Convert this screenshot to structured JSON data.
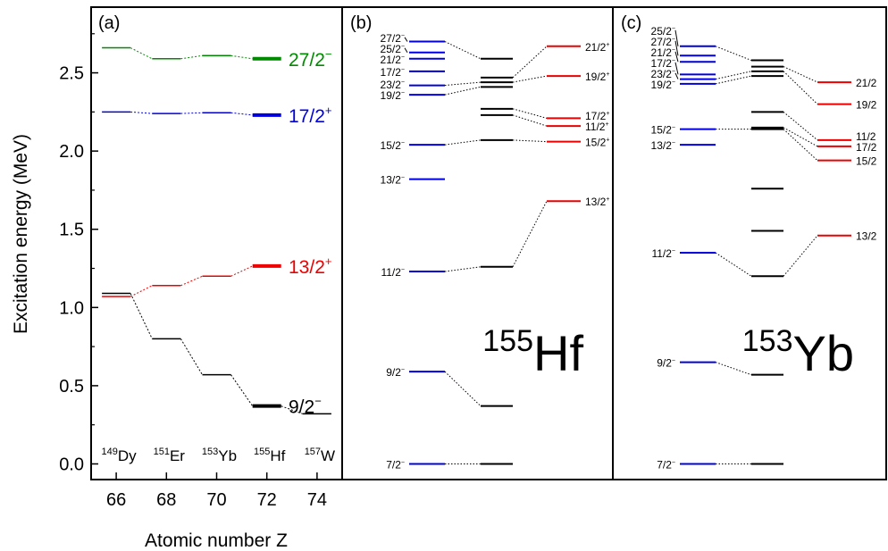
{
  "chart_data": {
    "type": "level-scheme",
    "ylabel": "Excitation energy (MeV)",
    "ylim": [
      -0.1,
      2.92
    ],
    "yticks": [
      "0.0",
      "0.5",
      "1.0",
      "1.5",
      "2.0",
      "2.5"
    ],
    "colors": {
      "green": "#008a00",
      "blue": "#0000e0",
      "red": "#ee0000",
      "black": "#000000"
    },
    "panels": [
      {
        "id": "a",
        "label": "(a)",
        "xlabel": "Atomic number Z",
        "xlim": [
          65,
          75
        ],
        "xticks": [
          "66",
          "68",
          "70",
          "72",
          "74"
        ],
        "nuclei": [
          {
            "mass": "149",
            "symbol": "Dy",
            "z": 66
          },
          {
            "mass": "151",
            "symbol": "Er",
            "z": 68
          },
          {
            "mass": "153",
            "symbol": "Yb",
            "z": 70
          },
          {
            "mass": "155",
            "symbol": "Hf",
            "z": 72
          },
          {
            "mass": "157",
            "symbol": "W",
            "z": 74
          }
        ],
        "series": [
          {
            "label": "27/2",
            "parity": "−",
            "color": "green",
            "z": [
              66,
              68,
              70,
              72
            ],
            "energy": [
              2.66,
              2.59,
              2.61,
              2.59
            ]
          },
          {
            "label": "17/2",
            "parity": "+",
            "color": "blue",
            "z": [
              66,
              68,
              70,
              72
            ],
            "energy": [
              2.25,
              2.24,
              2.245,
              2.23
            ]
          },
          {
            "label": "13/2",
            "parity": "+",
            "color": "red",
            "z": [
              66,
              68,
              70,
              72
            ],
            "energy": [
              1.07,
              1.14,
              1.2,
              1.265
            ]
          },
          {
            "label": "9/2",
            "parity": "−",
            "color": "black",
            "z": [
              66,
              68,
              70,
              72,
              74
            ],
            "energy": [
              1.09,
              0.8,
              0.57,
              0.37,
              0.32
            ]
          }
        ]
      },
      {
        "id": "b",
        "label": "(b)",
        "nucleus": {
          "mass": "155",
          "symbol": "Hf"
        },
        "left": [
          {
            "label": "7/2",
            "parity": "−",
            "energy": 0.0
          },
          {
            "label": "9/2",
            "parity": "−",
            "energy": 0.59
          },
          {
            "label": "11/2",
            "parity": "−",
            "energy": 1.23
          },
          {
            "label": "13/2",
            "parity": "−",
            "energy": 1.82
          },
          {
            "label": "15/2",
            "parity": "−",
            "energy": 2.04
          },
          {
            "label": "19/2",
            "parity": "−",
            "energy": 2.36
          },
          {
            "label": "23/2",
            "parity": "−",
            "energy": 2.42
          },
          {
            "label": "17/2",
            "parity": "−",
            "energy": 2.51
          },
          {
            "label": "21/2",
            "parity": "−",
            "energy": 2.59
          },
          {
            "label": "25/2",
            "parity": "−",
            "energy": 2.63
          },
          {
            "label": "27/2",
            "parity": "−",
            "energy": 2.7
          }
        ],
        "middle": [
          0.0,
          0.37,
          1.26,
          2.07,
          2.23,
          2.27,
          2.41,
          2.44,
          2.47,
          2.59
        ],
        "right": [
          {
            "label": "13/2",
            "parity": "+",
            "energy": 1.68
          },
          {
            "label": "15/2",
            "parity": "+",
            "energy": 2.06
          },
          {
            "label": "11/2",
            "parity": "+",
            "energy": 2.16
          },
          {
            "label": "17/2",
            "parity": "+",
            "energy": 2.21
          },
          {
            "label": "19/2",
            "parity": "+",
            "energy": 2.48
          },
          {
            "label": "21/2",
            "parity": "+",
            "energy": 2.67
          }
        ],
        "links": [
          [
            "left",
            0,
            "mid",
            0
          ],
          [
            "left",
            1,
            "mid",
            1
          ],
          [
            "left",
            2,
            "mid",
            2
          ],
          [
            "left",
            4,
            "mid",
            3
          ],
          [
            "left",
            5,
            "mid",
            6
          ],
          [
            "left",
            6,
            "mid",
            7
          ],
          [
            "left",
            10,
            "mid",
            9
          ],
          [
            "mid",
            2,
            "right",
            0
          ],
          [
            "mid",
            3,
            "right",
            1
          ],
          [
            "mid",
            4,
            "right",
            2
          ],
          [
            "mid",
            5,
            "right",
            3
          ],
          [
            "mid",
            7,
            "right",
            4
          ],
          [
            "mid",
            8,
            "right",
            5
          ]
        ]
      },
      {
        "id": "c",
        "label": "(c)",
        "nucleus": {
          "mass": "153",
          "symbol": "Yb"
        },
        "left": [
          {
            "label": "7/2",
            "parity": "−",
            "energy": 0.0
          },
          {
            "label": "9/2",
            "parity": "−",
            "energy": 0.65
          },
          {
            "label": "11/2",
            "parity": "−",
            "energy": 1.35
          },
          {
            "label": "13/2",
            "parity": "−",
            "energy": 2.04
          },
          {
            "label": "15/2",
            "parity": "−",
            "energy": 2.14
          },
          {
            "label": "19/2",
            "parity": "−",
            "energy": 2.43
          },
          {
            "label": "23/2",
            "parity": "−",
            "energy": 2.46
          },
          {
            "label": "17/2",
            "parity": "−",
            "energy": 2.49
          },
          {
            "label": "21/2",
            "parity": "−",
            "energy": 2.57
          },
          {
            "label": "27/2",
            "parity": "−",
            "energy": 2.61
          },
          {
            "label": "25/2",
            "parity": "−",
            "energy": 2.67
          }
        ],
        "middle": [
          0.0,
          0.57,
          1.2,
          1.49,
          1.76,
          2.14,
          2.15,
          2.25,
          2.48,
          2.51,
          2.54,
          2.58
        ],
        "right": [
          {
            "label": "13/2",
            "parity": "",
            "energy": 1.46
          },
          {
            "label": "15/2",
            "parity": "",
            "energy": 1.94
          },
          {
            "label": "17/2",
            "parity": "",
            "energy": 2.03
          },
          {
            "label": "11/2",
            "parity": "",
            "energy": 2.07
          },
          {
            "label": "19/2",
            "parity": "",
            "energy": 2.3
          },
          {
            "label": "21/2",
            "parity": "",
            "energy": 2.44
          }
        ],
        "links": [
          [
            "left",
            0,
            "mid",
            0
          ],
          [
            "left",
            1,
            "mid",
            1
          ],
          [
            "left",
            2,
            "mid",
            2
          ],
          [
            "left",
            4,
            "mid",
            5
          ],
          [
            "left",
            5,
            "mid",
            8
          ],
          [
            "left",
            6,
            "mid",
            9
          ],
          [
            "left",
            10,
            "mid",
            11
          ],
          [
            "mid",
            2,
            "right",
            0
          ],
          [
            "mid",
            5,
            "right",
            1
          ],
          [
            "mid",
            6,
            "right",
            2
          ],
          [
            "mid",
            7,
            "right",
            3
          ],
          [
            "mid",
            9,
            "right",
            4
          ],
          [
            "mid",
            10,
            "right",
            5
          ]
        ]
      }
    ]
  }
}
